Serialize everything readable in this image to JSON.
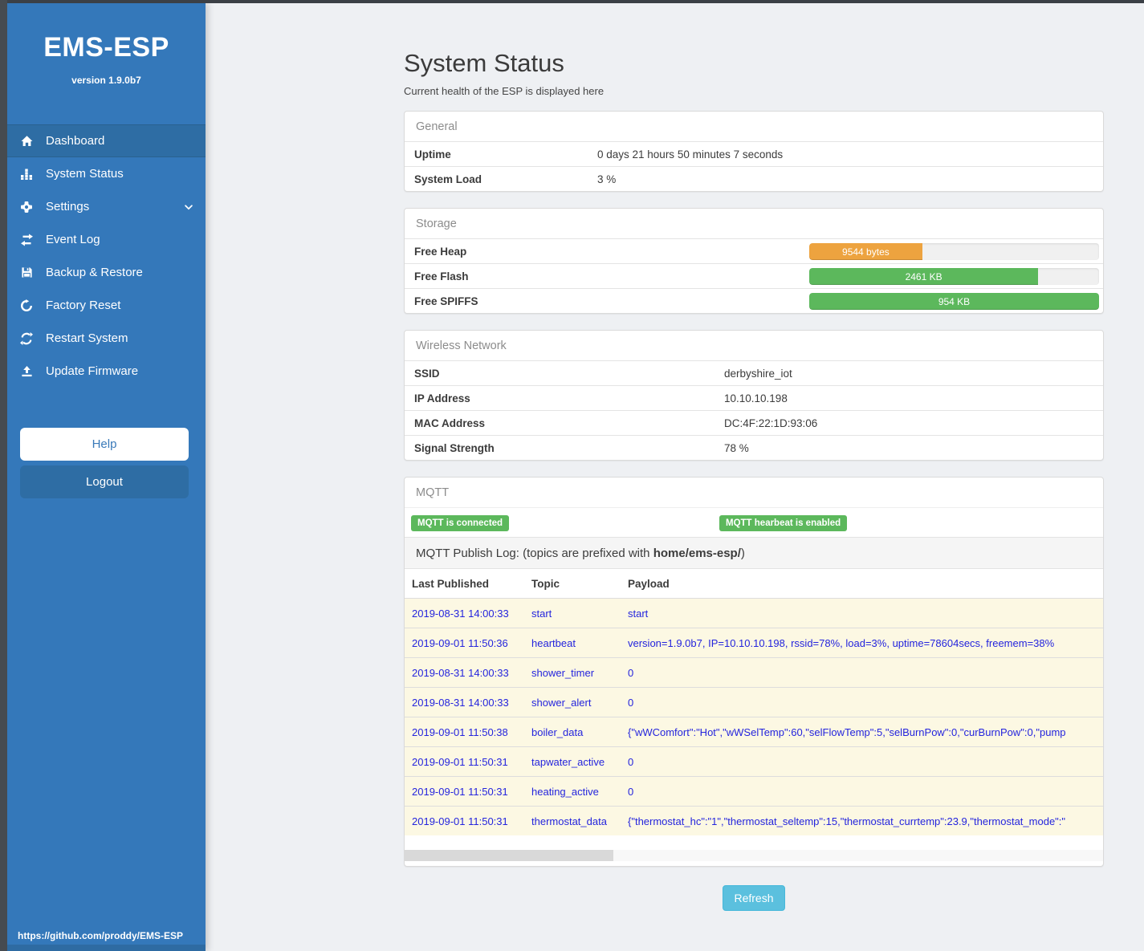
{
  "colors": {
    "sidebar_blue": "#3478ba",
    "active_item_blue": "#2e6da4",
    "badge_green": "#5cb85c",
    "bar_orange": "#eda33f",
    "bar_green": "#5cb85c",
    "refresh_blue": "#5bc0de",
    "log_row_bg": "#fcf8e3",
    "log_text_blue": "#2424dd"
  },
  "sidebar": {
    "title": "EMS-ESP",
    "version": "version 1.9.0b7",
    "items": [
      {
        "label": "Dashboard",
        "icon": "home-icon",
        "active": true
      },
      {
        "label": "System Status",
        "icon": "bar-chart-icon",
        "active": false
      },
      {
        "label": "Settings",
        "icon": "gear-icon",
        "active": false,
        "chevron": "chevron-down-icon"
      },
      {
        "label": "Event Log",
        "icon": "exchange-icon",
        "active": false
      },
      {
        "label": "Backup & Restore",
        "icon": "save-icon",
        "active": false
      },
      {
        "label": "Factory Reset",
        "icon": "undo-icon",
        "active": false
      },
      {
        "label": "Restart System",
        "icon": "refresh-icon",
        "active": false
      },
      {
        "label": "Update Firmware",
        "icon": "upload-icon",
        "active": false
      }
    ],
    "help_label": "Help",
    "logout_label": "Logout",
    "footer_link": "https://github.com/proddy/EMS-ESP"
  },
  "page": {
    "title": "System Status",
    "subtitle": "Current health of the ESP is displayed here",
    "refresh_label": "Refresh"
  },
  "general": {
    "header": "General",
    "rows": [
      {
        "label": "Uptime",
        "value": "0 days 21 hours 50 minutes 7 seconds"
      },
      {
        "label": "System Load",
        "value": "3 %"
      }
    ]
  },
  "storage": {
    "header": "Storage",
    "bars": [
      {
        "label": "Free Heap",
        "value": "9544 bytes",
        "percent": 39,
        "color": "#eda33f"
      },
      {
        "label": "Free Flash",
        "value": "2461 KB",
        "percent": 79,
        "color": "#5cb85c"
      },
      {
        "label": "Free SPIFFS",
        "value": "954 KB",
        "percent": 100,
        "color": "#5cb85c"
      }
    ]
  },
  "wireless": {
    "header": "Wireless Network",
    "rows": [
      {
        "label": "SSID",
        "value": "derbyshire_iot"
      },
      {
        "label": "IP Address",
        "value": "10.10.10.198"
      },
      {
        "label": "MAC Address",
        "value": "DC:4F:22:1D:93:06"
      },
      {
        "label": "Signal Strength",
        "value": "78 %"
      }
    ]
  },
  "mqtt": {
    "header": "MQTT",
    "badges": [
      {
        "label": "MQTT is connected"
      },
      {
        "label": "MQTT hearbeat is enabled"
      }
    ],
    "publish_log": {
      "prefix": "MQTT Publish Log: (topics are prefixed with ",
      "bold": "home/ems-esp/",
      "suffix": ")"
    },
    "columns": {
      "time": "Last Published",
      "topic": "Topic",
      "payload": "Payload"
    },
    "rows": [
      {
        "time": "2019-08-31 14:00:33",
        "topic": "start",
        "payload": "start"
      },
      {
        "time": "2019-09-01 11:50:36",
        "topic": "heartbeat",
        "payload": "version=1.9.0b7, IP=10.10.10.198, rssid=78%, load=3%, uptime=78604secs, freemem=38%"
      },
      {
        "time": "2019-08-31 14:00:33",
        "topic": "shower_timer",
        "payload": "0"
      },
      {
        "time": "2019-08-31 14:00:33",
        "topic": "shower_alert",
        "payload": "0"
      },
      {
        "time": "2019-09-01 11:50:38",
        "topic": "boiler_data",
        "payload": "{\"wWComfort\":\"Hot\",\"wWSelTemp\":60,\"selFlowTemp\":5,\"selBurnPow\":0,\"curBurnPow\":0,\"pump"
      },
      {
        "time": "2019-09-01 11:50:31",
        "topic": "tapwater_active",
        "payload": "0"
      },
      {
        "time": "2019-09-01 11:50:31",
        "topic": "heating_active",
        "payload": "0"
      },
      {
        "time": "2019-09-01 11:50:31",
        "topic": "thermostat_data",
        "payload": "{\"thermostat_hc\":\"1\",\"thermostat_seltemp\":15,\"thermostat_currtemp\":23.9,\"thermostat_mode\":\""
      }
    ]
  }
}
